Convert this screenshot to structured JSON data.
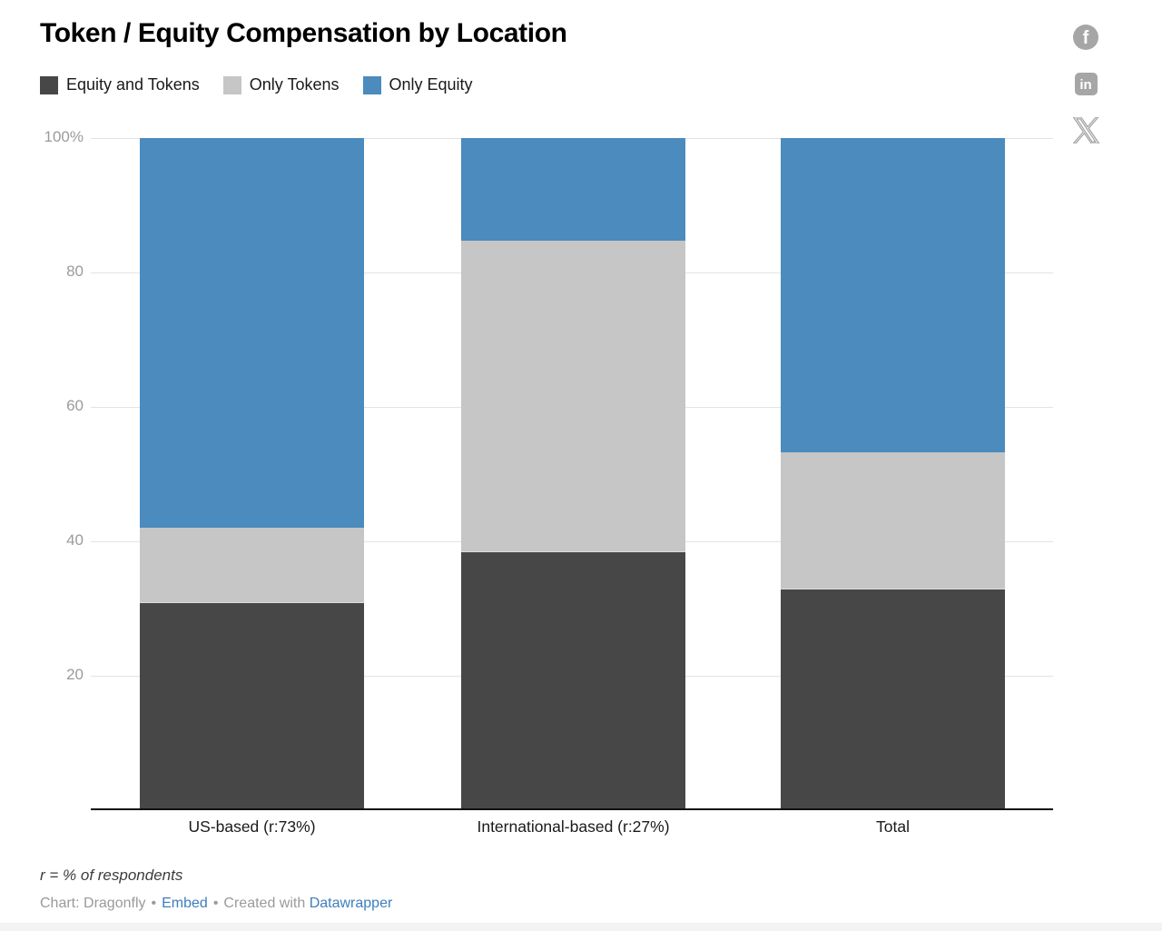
{
  "page": {
    "title": "Token / Equity Compensation by Location"
  },
  "social_icons": [
    {
      "name": "Facebook",
      "glyph": "f"
    },
    {
      "name": "LinkedIn",
      "glyph": "in"
    },
    {
      "name": "X"
    }
  ],
  "chart_data": {
    "type": "bar",
    "variant": "100%-stacked-column",
    "title": "Token / Equity Compensation by Location",
    "categories": [
      "US-based (r:73%)",
      "International-based (r:27%)",
      "Total"
    ],
    "series": [
      {
        "name": "Equity and Tokens",
        "color": "#474747",
        "values": [
          31,
          38.5,
          33
        ]
      },
      {
        "name": "Only Tokens",
        "color": "#c6c6c6",
        "values": [
          11,
          46.2,
          20.2
        ]
      },
      {
        "name": "Only Equity",
        "color": "#4b8bbd",
        "values": [
          58,
          15.3,
          46.8
        ]
      }
    ],
    "ylim": [
      0,
      100
    ],
    "yticks": [
      {
        "value": 100,
        "label": "100%"
      },
      {
        "value": 80,
        "label": "80"
      },
      {
        "value": 60,
        "label": "60"
      },
      {
        "value": 40,
        "label": "40"
      },
      {
        "value": 20,
        "label": "20"
      }
    ],
    "grid": true,
    "legend_position": "top",
    "axis_line_color": "#111111",
    "gridline_color": "#e3e3e3"
  },
  "footnote": "r = % of respondents",
  "footer": {
    "chart_credit": "Chart: Dragonfly",
    "separator": "•",
    "embed_label": "Embed",
    "created_with": "Created with",
    "tool_label": "Datawrapper"
  }
}
